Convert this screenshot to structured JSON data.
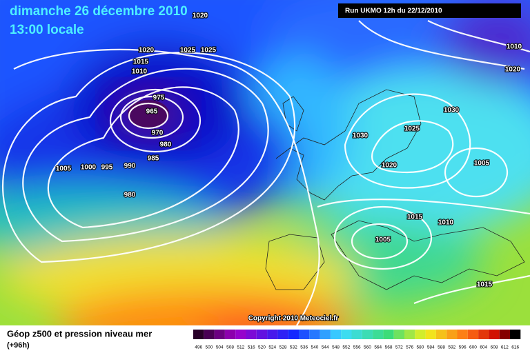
{
  "header": {
    "date": "dimanche 26 décembre 2010",
    "time": "13:00 locale",
    "run": "Run UKMO 12h du 22/12/2010"
  },
  "isobar_labels": [
    "1020",
    "1020",
    "1025",
    "1025",
    "1015",
    "1010",
    "975",
    "965",
    "970",
    "980",
    "985",
    "990",
    "995",
    "1000",
    "1005",
    "980",
    "1030",
    "1025",
    "1030",
    "1020",
    "1005",
    "1015",
    "1010",
    "1005",
    "1015",
    "1010",
    "1020"
  ],
  "copyright": "Copyright 2010 Meteociel.fr",
  "footer": {
    "title": "Géop z500 et pression niveau mer",
    "lead": "(+96h)",
    "scale": [
      496,
      500,
      504,
      508,
      512,
      516,
      520,
      524,
      528,
      532,
      536,
      540,
      544,
      548,
      552,
      556,
      560,
      564,
      568,
      572,
      576,
      580,
      584,
      588,
      592,
      596,
      600,
      604,
      608,
      612,
      616
    ]
  }
}
